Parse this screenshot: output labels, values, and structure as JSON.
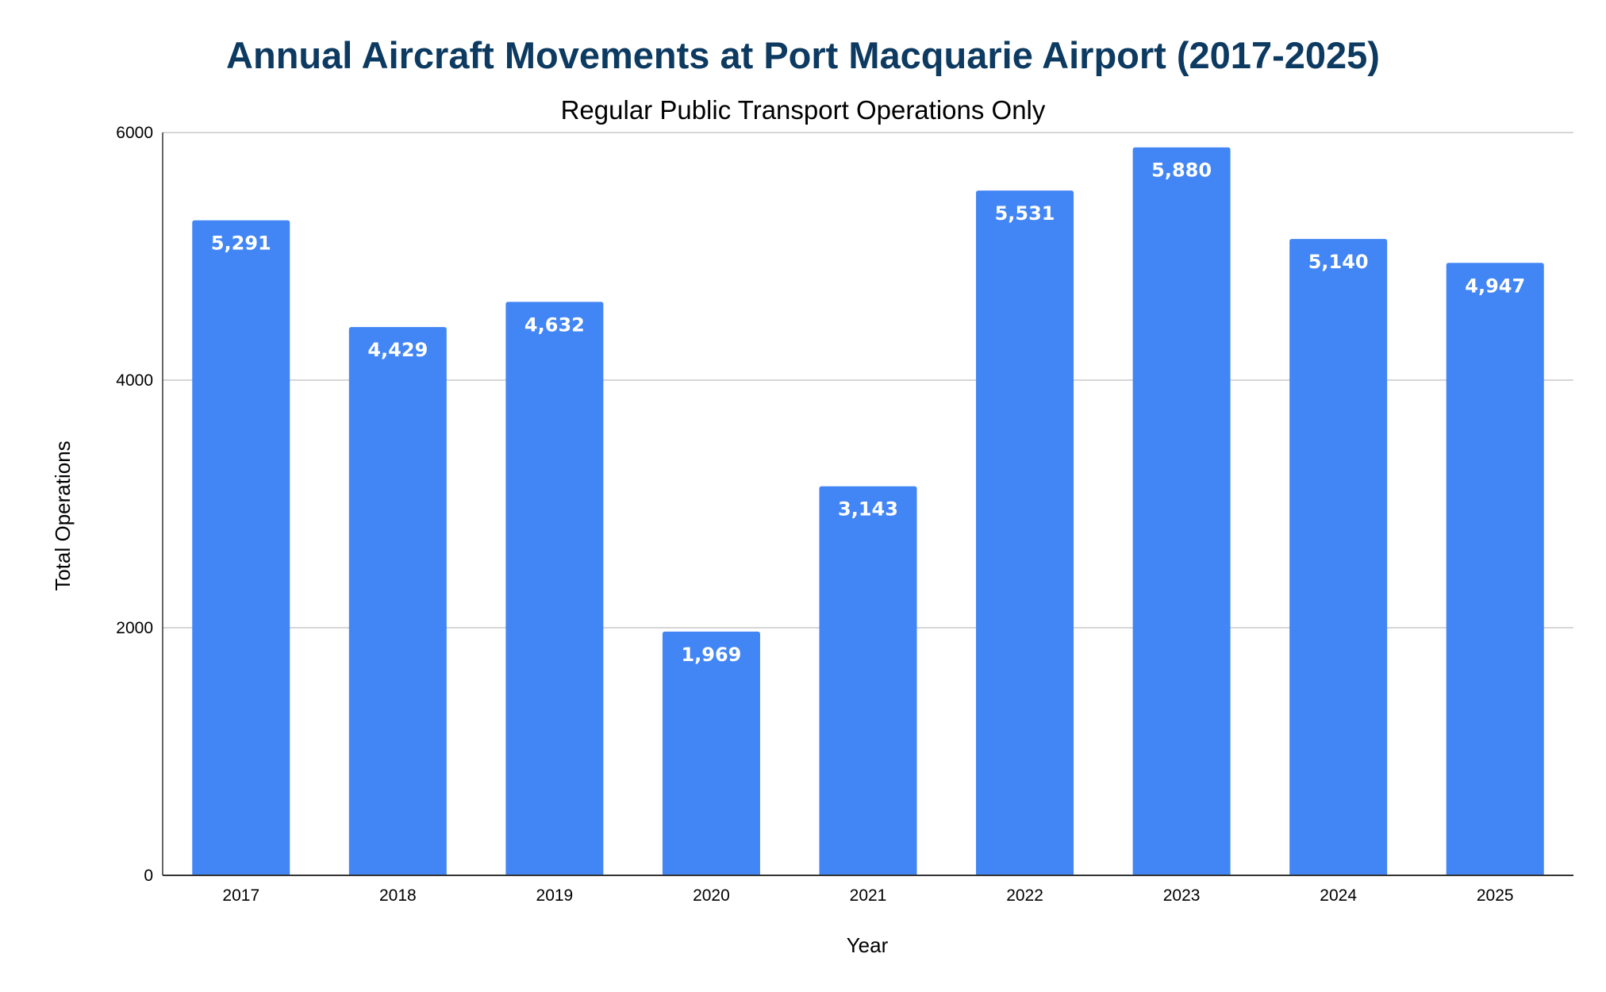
{
  "chart_data": {
    "type": "bar",
    "title": "Annual Aircraft Movements at Port Macquarie Airport (2017-2025)",
    "subtitle": "Regular Public Transport Operations Only",
    "xlabel": "Year",
    "ylabel": "Total Operations",
    "categories": [
      "2017",
      "2018",
      "2019",
      "2020",
      "2021",
      "2022",
      "2023",
      "2024",
      "2025"
    ],
    "values": [
      5291,
      4429,
      4632,
      1969,
      3143,
      5531,
      5880,
      5140,
      4947
    ],
    "data_labels": [
      "5,291",
      "4,429",
      "4,632",
      "1,969",
      "3,143",
      "5,531",
      "5,880",
      "5,140",
      "4,947"
    ],
    "ylim": [
      0,
      6000
    ],
    "yticks": [
      0,
      2000,
      4000,
      6000
    ],
    "ytick_labels": [
      "0",
      "2000",
      "4000",
      "6000"
    ],
    "grid": true,
    "legend": "none",
    "bar_color": "#4285f4"
  }
}
